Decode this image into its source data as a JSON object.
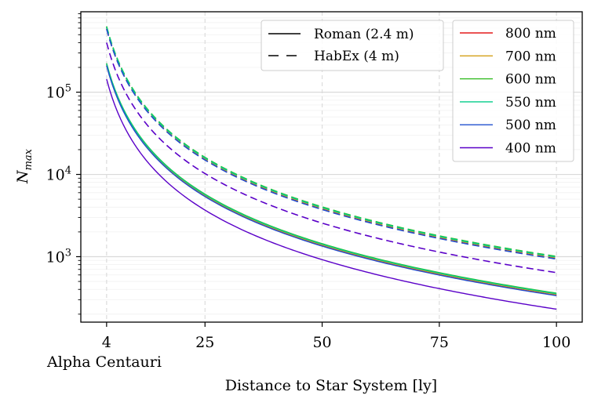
{
  "chart_data": {
    "type": "line",
    "xlabel": "Distance to Star System [ly]",
    "ylabel": "N_max",
    "x_scale": "linear",
    "y_scale": "log",
    "xlim": [
      -1.5,
      105.5
    ],
    "ylim": [
      160,
      950000
    ],
    "x_ticks": [
      {
        "value": 4,
        "label": "4"
      },
      {
        "value": 25,
        "label": "25"
      },
      {
        "value": 50,
        "label": "50"
      },
      {
        "value": 75,
        "label": "75"
      },
      {
        "value": 100,
        "label": "100"
      }
    ],
    "y_ticks": [
      {
        "value": 1000,
        "base": "10",
        "exp": "3"
      },
      {
        "value": 10000,
        "base": "10",
        "exp": "4"
      },
      {
        "value": 100000,
        "base": "10",
        "exp": "5"
      }
    ],
    "annotation": "Alpha Centauri",
    "grid": true,
    "decay_exponent": 2,
    "telescopes": [
      {
        "name": "Roman (2.4 m)",
        "dash": "solid"
      },
      {
        "name": "HabEx (4 m)",
        "dash": "dashed"
      }
    ],
    "wavelengths": [
      {
        "name": "800 nm",
        "color": "#e41a1c"
      },
      {
        "name": "700 nm",
        "color": "#d4a017"
      },
      {
        "name": "600 nm",
        "color": "#33bb22"
      },
      {
        "name": "550 nm",
        "color": "#00cc88"
      },
      {
        "name": "500 nm",
        "color": "#1f4fcf"
      },
      {
        "name": "400 nm",
        "color": "#5a00c8"
      }
    ],
    "series": [
      {
        "name": "800 nm",
        "telescope": "Roman (2.4 m)",
        "color": "#e41a1c",
        "x": [
          4,
          100
        ],
        "y": [
          212000,
          339
        ]
      },
      {
        "name": "700 nm",
        "telescope": "Roman (2.4 m)",
        "color": "#d4a017",
        "x": [
          4,
          100
        ],
        "y": [
          218000,
          349
        ]
      },
      {
        "name": "600 nm",
        "telescope": "Roman (2.4 m)",
        "color": "#33bb22",
        "x": [
          4,
          100
        ],
        "y": [
          225000,
          360
        ]
      },
      {
        "name": "550 nm",
        "telescope": "Roman (2.4 m)",
        "color": "#00cc88",
        "x": [
          4,
          100
        ],
        "y": [
          222000,
          355
        ]
      },
      {
        "name": "500 nm",
        "telescope": "Roman (2.4 m)",
        "color": "#1f4fcf",
        "x": [
          4,
          100
        ],
        "y": [
          210000,
          336
        ]
      },
      {
        "name": "400 nm",
        "telescope": "Roman (2.4 m)",
        "color": "#5a00c8",
        "x": [
          4,
          100
        ],
        "y": [
          144000,
          230
        ]
      },
      {
        "name": "800 nm",
        "telescope": "HabEx (4 m)",
        "color": "#e41a1c",
        "x": [
          4,
          100
        ],
        "y": [
          590000,
          944
        ]
      },
      {
        "name": "700 nm",
        "telescope": "HabEx (4 m)",
        "color": "#d4a017",
        "x": [
          4,
          100
        ],
        "y": [
          610000,
          976
        ]
      },
      {
        "name": "600 nm",
        "telescope": "HabEx (4 m)",
        "color": "#33bb22",
        "x": [
          4,
          100
        ],
        "y": [
          630000,
          1008
        ]
      },
      {
        "name": "550 nm",
        "telescope": "HabEx (4 m)",
        "color": "#00cc88",
        "x": [
          4,
          100
        ],
        "y": [
          620000,
          992
        ]
      },
      {
        "name": "500 nm",
        "telescope": "HabEx (4 m)",
        "color": "#1f4fcf",
        "x": [
          4,
          100
        ],
        "y": [
          585000,
          936
        ]
      },
      {
        "name": "400 nm",
        "telescope": "HabEx (4 m)",
        "color": "#5a00c8",
        "x": [
          4,
          100
        ],
        "y": [
          400000,
          640
        ]
      }
    ]
  }
}
